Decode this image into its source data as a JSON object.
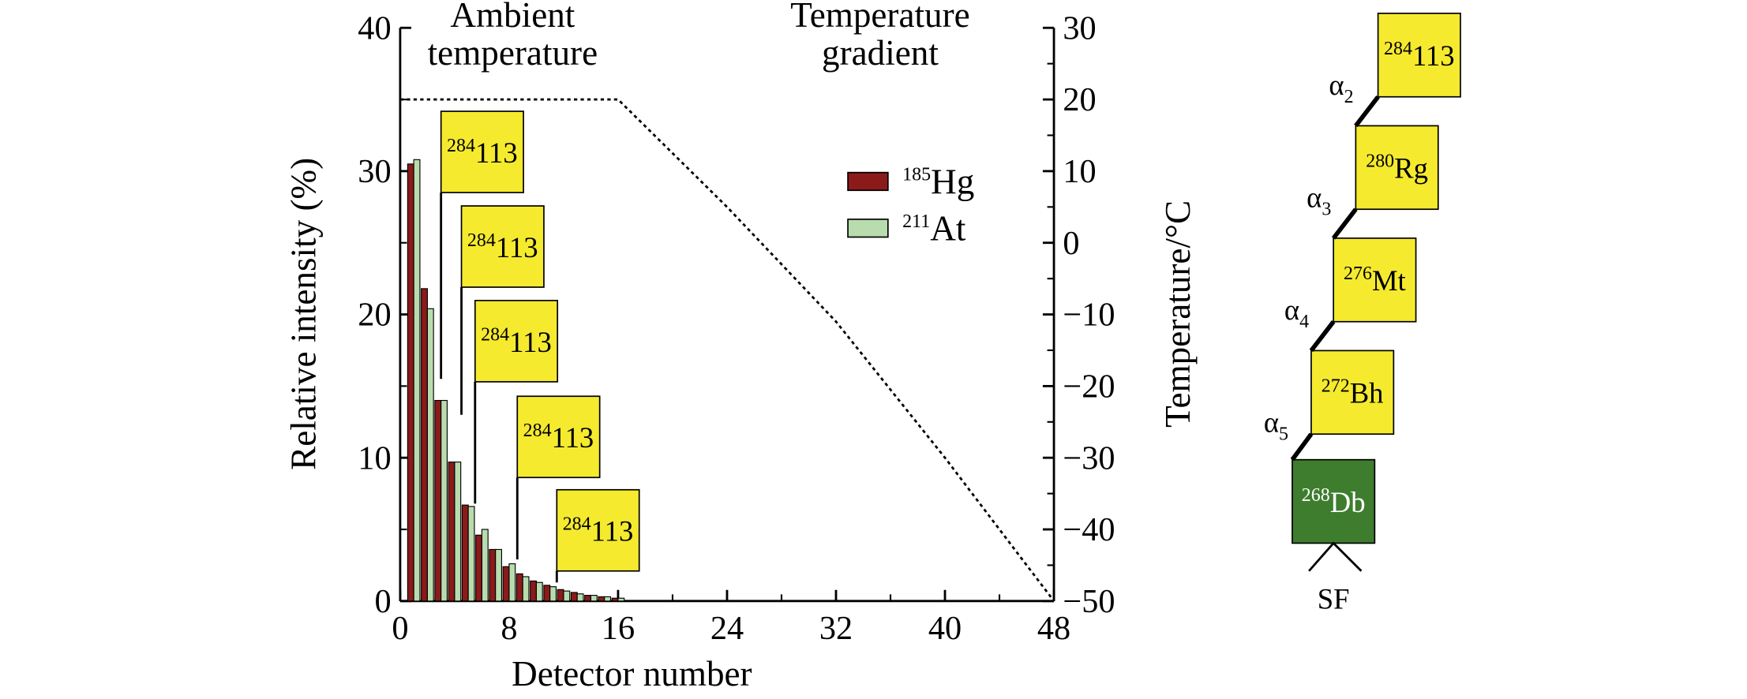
{
  "chart_data": {
    "type": "bar",
    "xlabel": "Detector number",
    "ylabel": "Relative intensity (%)",
    "y2label": "Temperature/°C",
    "region_labels": [
      [
        "Ambient",
        "temperature"
      ],
      [
        "Temperature",
        "gradient"
      ]
    ],
    "x": [
      1,
      2,
      3,
      4,
      5,
      6,
      7,
      8,
      9,
      10,
      11,
      12,
      13,
      14,
      15,
      16
    ],
    "series": [
      {
        "mass_number": "185",
        "name": "Hg",
        "color": "#8b1a1a",
        "values": [
          30.5,
          21.8,
          14.0,
          9.7,
          6.7,
          4.6,
          3.6,
          2.4,
          1.9,
          1.4,
          1.1,
          0.8,
          0.6,
          0.4,
          0.3,
          0.2
        ]
      },
      {
        "mass_number": "211",
        "name": "At",
        "color": "#b8dcae",
        "values": [
          30.8,
          20.4,
          14.0,
          9.7,
          6.6,
          5.0,
          3.6,
          2.6,
          1.7,
          1.3,
          1.0,
          0.7,
          0.5,
          0.4,
          0.3,
          0.2
        ]
      }
    ],
    "temperature_profile": {
      "axis": "y2",
      "color": "#000000",
      "x": [
        0,
        16,
        24,
        32,
        40,
        48
      ],
      "values": [
        20,
        20,
        5,
        -11,
        -30,
        -50
      ]
    },
    "annotations": [
      {
        "mass_number": "284",
        "element": "113",
        "x": 3,
        "y": 15.5
      },
      {
        "mass_number": "284",
        "element": "113",
        "x": 4.5,
        "y": 13
      },
      {
        "mass_number": "284",
        "element": "113",
        "x": 5.5,
        "y": 6.8
      },
      {
        "mass_number": "284",
        "element": "113",
        "x": 8.6,
        "y": 2.9
      },
      {
        "mass_number": "284",
        "element": "113",
        "x": 11.5,
        "y": 1.3
      }
    ],
    "xlim": [
      0,
      48
    ],
    "xticks": [
      0,
      8,
      16,
      24,
      32,
      40,
      48
    ],
    "ylim": [
      0,
      40
    ],
    "yticks": [
      0,
      10,
      20,
      30,
      40
    ],
    "y2lim": [
      -50,
      30
    ],
    "y2ticks": [
      {
        "value": -50,
        "label": "−50"
      },
      {
        "value": -40,
        "label": "−40"
      },
      {
        "value": -30,
        "label": "−30"
      },
      {
        "value": -20,
        "label": "−20"
      },
      {
        "value": -10,
        "label": "−10"
      },
      0,
      10,
      20,
      30
    ]
  },
  "decay_chain": {
    "nuclides": [
      {
        "mass_number": "284",
        "element": "113"
      },
      {
        "mass_number": "280",
        "element": "Rg"
      },
      {
        "mass_number": "276",
        "element": "Mt"
      },
      {
        "mass_number": "272",
        "element": "Bh"
      },
      {
        "mass_number": "268",
        "element": "Db"
      }
    ],
    "decays": [
      {
        "symbol": "α",
        "index": "2"
      },
      {
        "symbol": "α",
        "index": "3"
      },
      {
        "symbol": "α",
        "index": "4"
      },
      {
        "symbol": "α",
        "index": "5"
      }
    ],
    "end": "SF"
  }
}
